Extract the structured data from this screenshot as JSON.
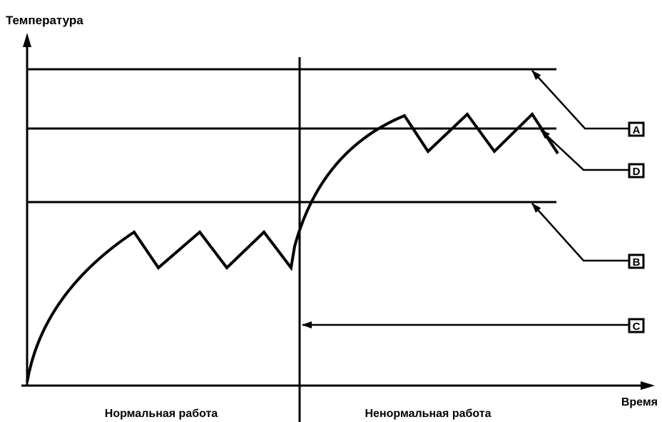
{
  "diagram": {
    "y_axis_label": "Температура",
    "x_axis_label": "Время",
    "regions": {
      "normal": "Нормальная работа",
      "abnormal": "Ненормальная работа"
    },
    "markers": [
      {
        "id": "A",
        "label": "A"
      },
      {
        "id": "D",
        "label": "D"
      },
      {
        "id": "B",
        "label": "B"
      },
      {
        "id": "C",
        "label": "C"
      }
    ]
  }
}
